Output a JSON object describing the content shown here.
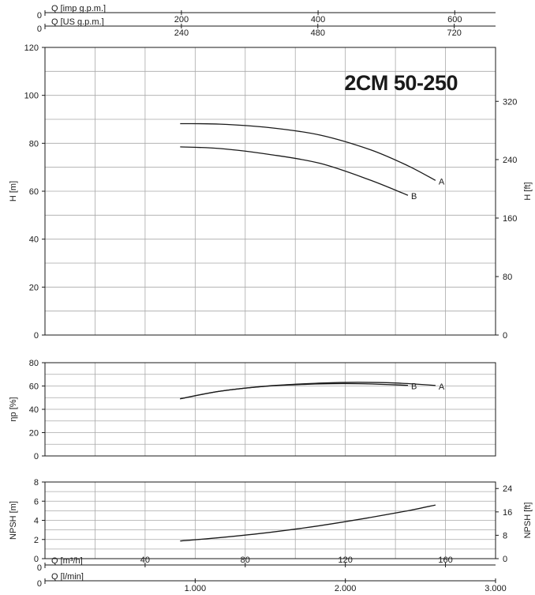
{
  "chart_data": {
    "type": "line",
    "title": "2CM 50-250",
    "colors": {
      "line": "#1a1a1a",
      "grid": "#a9a9a9"
    },
    "flow_axes": [
      {
        "id": "imp",
        "label": "Q [imp g.p.m.]",
        "origin": "0",
        "ticks": [
          {
            "text": "200",
            "x": 54.5
          },
          {
            "text": "400",
            "x": 109.1
          },
          {
            "text": "600",
            "x": 163.7
          }
        ]
      },
      {
        "id": "us",
        "label": "Q [US g.p.m.]",
        "origin": "0",
        "ticks": [
          {
            "text": "240",
            "x": 54.5
          },
          {
            "text": "480",
            "x": 109.0
          },
          {
            "text": "720",
            "x": 163.5
          }
        ]
      },
      {
        "id": "m3h",
        "label": "Q [m³/h]",
        "origin": "0",
        "ticks": [
          {
            "text": "40",
            "x": 40
          },
          {
            "text": "80",
            "x": 80
          },
          {
            "text": "120",
            "x": 120
          },
          {
            "text": "160",
            "x": 160
          }
        ]
      },
      {
        "id": "lmin",
        "label": "Q [l/min]",
        "origin": "0",
        "ticks": [
          {
            "text": "1.000",
            "x": 60
          },
          {
            "text": "2.000",
            "x": 120
          },
          {
            "text": "3.000",
            "x": 180
          }
        ]
      }
    ],
    "xlim": [
      0,
      180
    ],
    "panels": [
      {
        "id": "head",
        "ylabel": "H [m]",
        "ylim": [
          0,
          120
        ],
        "yticks": [
          "0",
          "20",
          "40",
          "60",
          "80",
          "100",
          "120"
        ],
        "right_axis": {
          "label": "H [ft]",
          "ticks": [
            {
              "text": "0",
              "y": 0
            },
            {
              "text": "80",
              "y": 24.4
            },
            {
              "text": "160",
              "y": 48.8
            },
            {
              "text": "240",
              "y": 73.2
            },
            {
              "text": "320",
              "y": 97.5
            }
          ]
        },
        "series": [
          {
            "name": "A",
            "points": [
              [
                54,
                88.2
              ],
              [
                70,
                88
              ],
              [
                90,
                86.5
              ],
              [
                110,
                83.4
              ],
              [
                130,
                77.3
              ],
              [
                145,
                70.6
              ],
              [
                156,
                64.5
              ]
            ]
          },
          {
            "name": "B",
            "points": [
              [
                54,
                78.5
              ],
              [
                70,
                77.8
              ],
              [
                90,
                75.3
              ],
              [
                110,
                71.6
              ],
              [
                130,
                64.6
              ],
              [
                145,
                58.3
              ]
            ]
          }
        ]
      },
      {
        "id": "efficiency",
        "ylabel": "ηp [%]",
        "ylim": [
          0,
          80
        ],
        "yticks": [
          "0",
          "20",
          "40",
          "60",
          "80"
        ],
        "series": [
          {
            "name": "A",
            "points": [
              [
                54,
                49
              ],
              [
                70,
                55.5
              ],
              [
                90,
                60.2
              ],
              [
                110,
                62.5
              ],
              [
                125,
                63.2
              ],
              [
                140,
                62.6
              ],
              [
                156,
                60.5
              ]
            ]
          },
          {
            "name": "B",
            "points": [
              [
                54,
                49
              ],
              [
                70,
                55.6
              ],
              [
                90,
                60
              ],
              [
                110,
                61.8
              ],
              [
                125,
                62
              ],
              [
                145,
                60.6
              ]
            ]
          }
        ]
      },
      {
        "id": "npsh",
        "ylabel": "NPSH [m]",
        "ylim": [
          0,
          8
        ],
        "yticks": [
          "0",
          "2",
          "4",
          "6",
          "8"
        ],
        "right_axis": {
          "label": "NPSH [ft]",
          "ticks": [
            {
              "text": "0",
              "y": 0
            },
            {
              "text": "8",
              "y": 2.44
            },
            {
              "text": "16",
              "y": 4.88
            },
            {
              "text": "24",
              "y": 7.32
            }
          ]
        },
        "series": [
          {
            "points": [
              [
                54,
                1.85
              ],
              [
                70,
                2.2
              ],
              [
                90,
                2.75
              ],
              [
                110,
                3.45
              ],
              [
                130,
                4.3
              ],
              [
                145,
                5.0
              ],
              [
                156,
                5.6
              ]
            ]
          }
        ]
      }
    ]
  }
}
